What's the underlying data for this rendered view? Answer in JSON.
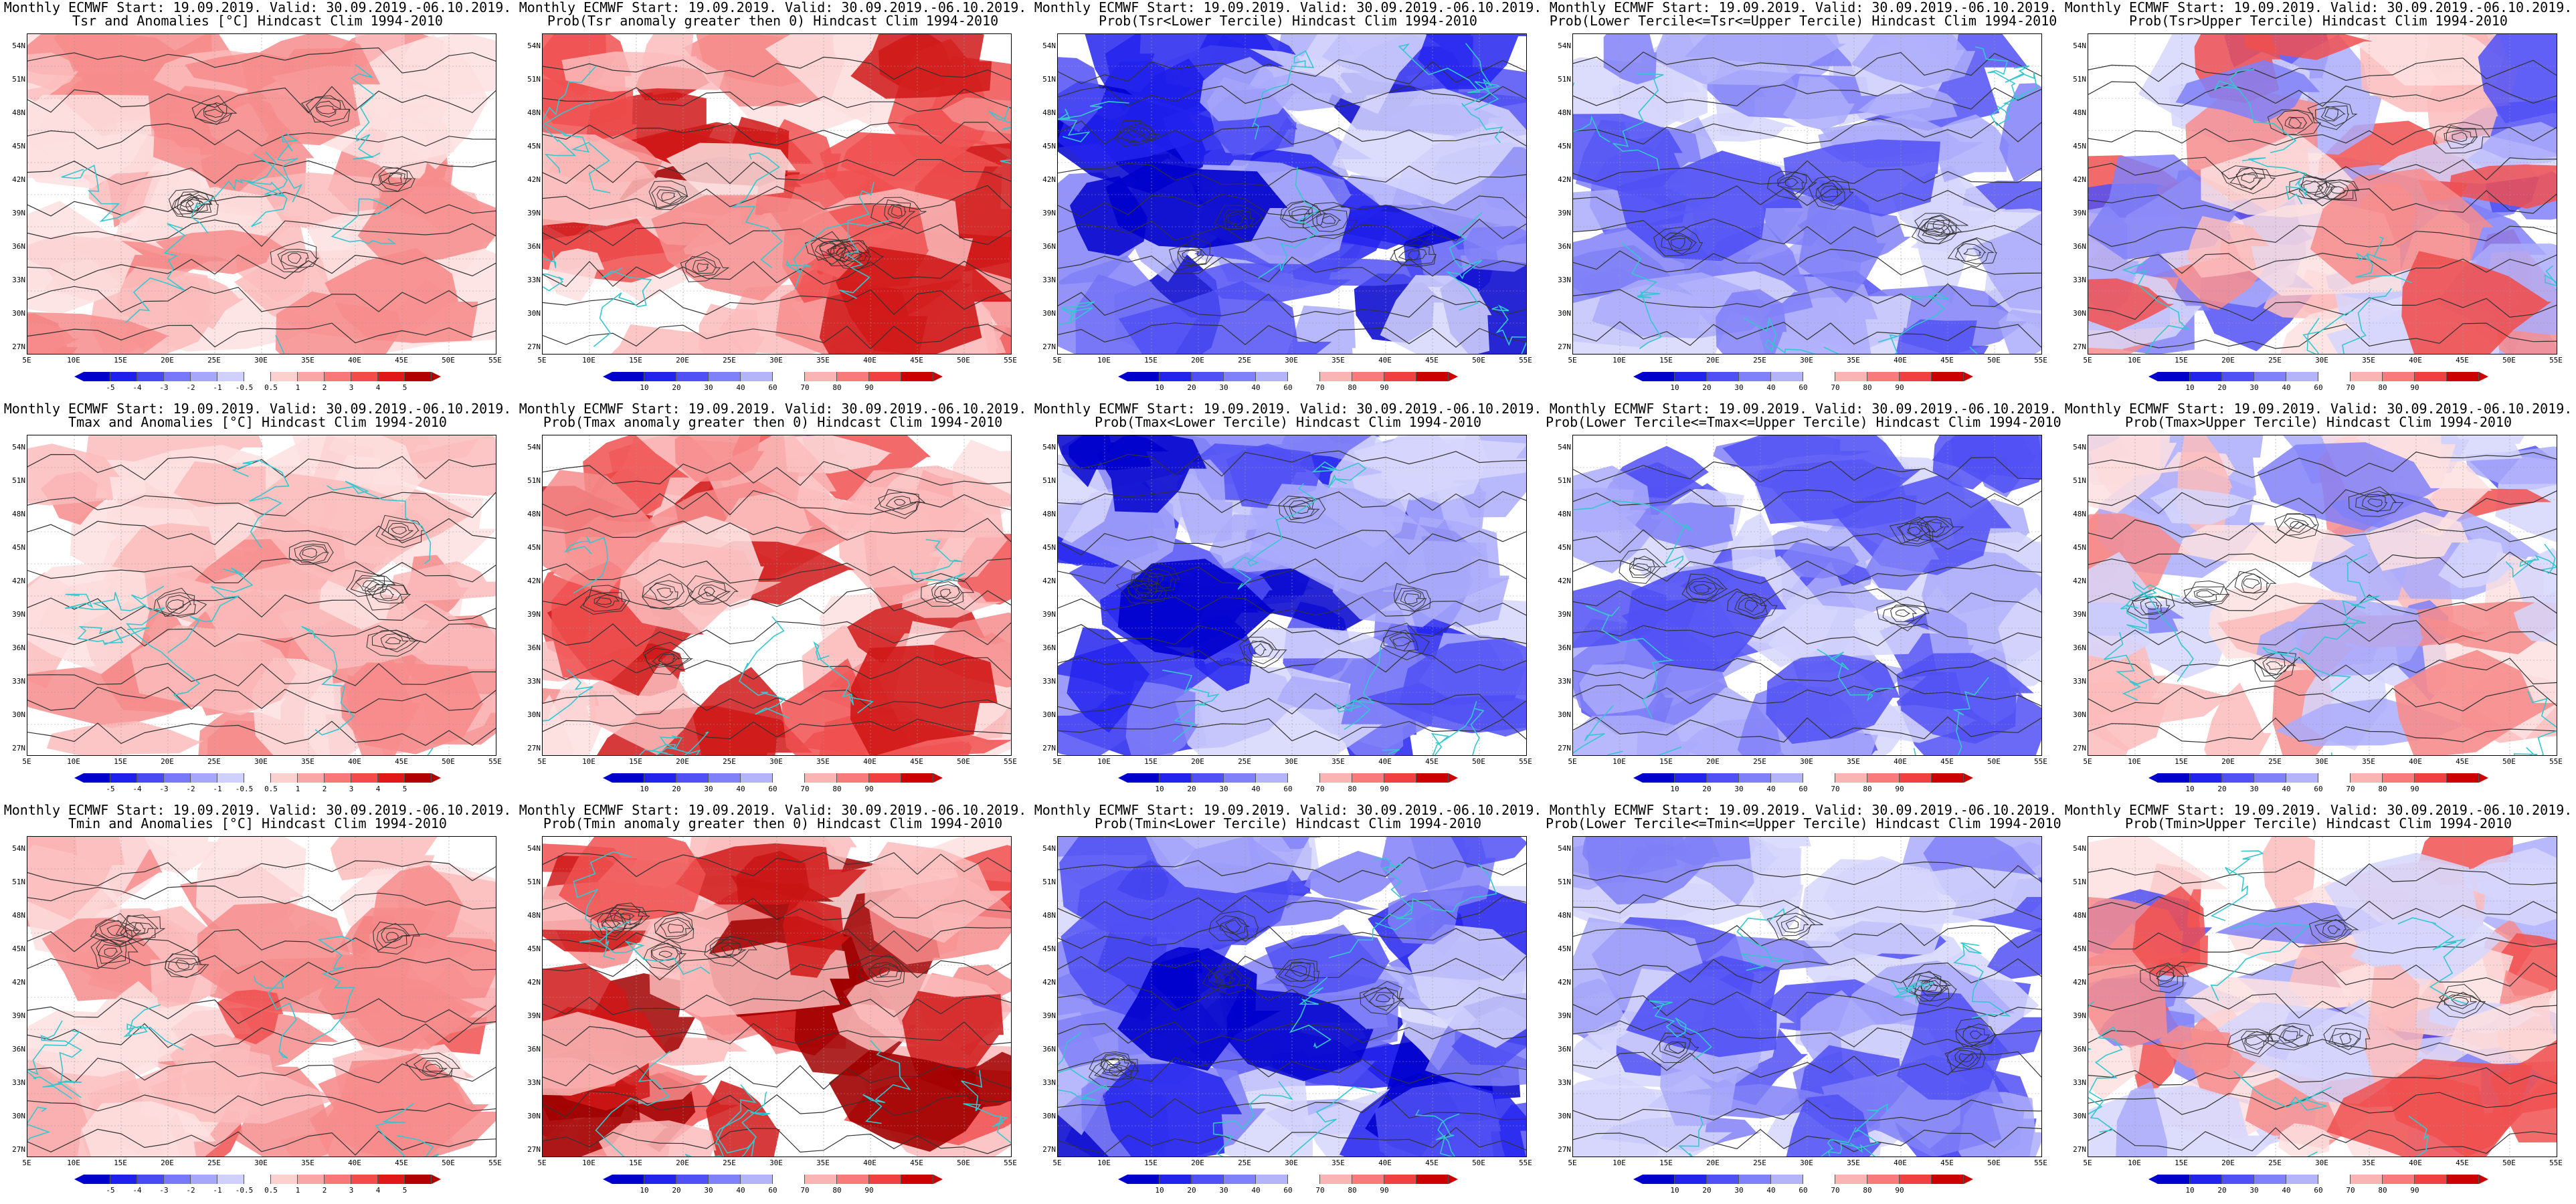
{
  "y_ticks": [
    "54N",
    "51N",
    "48N",
    "45N",
    "42N",
    "39N",
    "36N",
    "33N",
    "30N",
    "27N"
  ],
  "x_ticks": [
    "5E",
    "10E",
    "15E",
    "20E",
    "25E",
    "30E",
    "35E",
    "40E",
    "45E",
    "50E",
    "55E"
  ],
  "rows": [
    {
      "panels": [
        {
          "line1": "Monthly ECMWF Start: 19.09.2019. Valid: 30.09.2019.-06.10.2019.",
          "line2": "Tsr and Anomalies [°C] Hindcast Clim 1994-2010",
          "scale": "anom",
          "tone": "warm",
          "intensity": 0.45
        },
        {
          "line1": "Monthly ECMWF Start: 19.09.2019. Valid: 30.09.2019.-06.10.2019.",
          "line2": "Prob(Tsr anomaly greater then 0) Hindcast Clim 1994-2010",
          "scale": "prob",
          "tone": "warm",
          "intensity": 0.75
        },
        {
          "line1": "Monthly ECMWF Start: 19.09.2019. Valid: 30.09.2019.-06.10.2019.",
          "line2": "Prob(Tsr<Lower Tercile) Hindcast Clim 1994-2010",
          "scale": "prob",
          "tone": "cold",
          "intensity": 0.85
        },
        {
          "line1": "Monthly ECMWF Start: 19.09.2019. Valid: 30.09.2019.-06.10.2019.",
          "line2": "Prob(Lower Tercile<=Tsr<=Upper Tercile) Hindcast Clim 1994-2010",
          "scale": "prob",
          "tone": "cold",
          "intensity": 0.5
        },
        {
          "line1": "Monthly ECMWF Start: 19.09.2019. Valid: 30.09.2019.-06.10.2019.",
          "line2": "Prob(Tsr>Upper Tercile) Hindcast Clim 1994-2010",
          "scale": "prob",
          "tone": "mixed",
          "intensity": 0.55
        }
      ]
    },
    {
      "panels": [
        {
          "line1": "Monthly ECMWF Start: 19.09.2019. Valid: 30.09.2019.-06.10.2019.",
          "line2": "Tmax and Anomalies [°C] Hindcast Clim 1994-2010",
          "scale": "anom",
          "tone": "warm",
          "intensity": 0.4
        },
        {
          "line1": "Monthly ECMWF Start: 19.09.2019. Valid: 30.09.2019.-06.10.2019.",
          "line2": "Prob(Tmax anomaly greater then 0) Hindcast Clim 1994-2010",
          "scale": "prob",
          "tone": "warm",
          "intensity": 0.7
        },
        {
          "line1": "Monthly ECMWF Start: 19.09.2019. Valid: 30.09.2019.-06.10.2019.",
          "line2": "Prob(Tmax<Lower Tercile) Hindcast Clim 1994-2010",
          "scale": "prob",
          "tone": "cold",
          "intensity": 0.8
        },
        {
          "line1": "Monthly ECMWF Start: 19.09.2019. Valid: 30.09.2019.-06.10.2019.",
          "line2": "Prob(Lower Tercile<=Tmax<=Upper Tercile) Hindcast Clim 1994-2010",
          "scale": "prob",
          "tone": "cold",
          "intensity": 0.55
        },
        {
          "line1": "Monthly ECMWF Start: 19.09.2019. Valid: 30.09.2019.-06.10.2019.",
          "line2": "Prob(Tmax>Upper Tercile) Hindcast Clim 1994-2010",
          "scale": "prob",
          "tone": "mixed",
          "intensity": 0.45
        }
      ]
    },
    {
      "panels": [
        {
          "line1": "Monthly ECMWF Start: 19.09.2019. Valid: 30.09.2019.-06.10.2019.",
          "line2": "Tmin and Anomalies [°C] Hindcast Clim 1994-2010",
          "scale": "anom",
          "tone": "warm",
          "intensity": 0.45
        },
        {
          "line1": "Monthly ECMWF Start: 19.09.2019. Valid: 30.09.2019.-06.10.2019.",
          "line2": "Prob(Tmin anomaly greater then 0) Hindcast Clim 1994-2010",
          "scale": "prob",
          "tone": "warm",
          "intensity": 0.8
        },
        {
          "line1": "Monthly ECMWF Start: 19.09.2019. Valid: 30.09.2019.-06.10.2019.",
          "line2": "Prob(Tmin<Lower Tercile) Hindcast Clim 1994-2010",
          "scale": "prob",
          "tone": "cold",
          "intensity": 0.9
        },
        {
          "line1": "Monthly ECMWF Start: 19.09.2019. Valid: 30.09.2019.-06.10.2019.",
          "line2": "Prob(Lower Tercile<=Tmin<=Upper Tercile) Hindcast Clim 1994-2010",
          "scale": "prob",
          "tone": "cold",
          "intensity": 0.55
        },
        {
          "line1": "Monthly ECMWF Start: 19.09.2019. Valid: 30.09.2019.-06.10.2019.",
          "line2": "Prob(Tmin>Upper Tercile) Hindcast Clim 1994-2010",
          "scale": "prob",
          "tone": "mixed",
          "intensity": 0.55
        }
      ]
    }
  ],
  "scales": {
    "anom": {
      "labels": [
        "-5",
        "-4",
        "-3",
        "-2",
        "-1",
        "-0.5",
        "0.5",
        "1",
        "2",
        "3",
        "4",
        "5"
      ],
      "colors": [
        "#0000cc",
        "#2020ee",
        "#4a4af5",
        "#7878f8",
        "#a6a6fb",
        "#d0d0fd",
        "#ffffff",
        "#fdd0d0",
        "#fba6a6",
        "#f87878",
        "#f54a4a",
        "#e01818",
        "#b00000"
      ]
    },
    "prob": {
      "labels": [
        "10",
        "20",
        "30",
        "40",
        "60",
        "70",
        "80",
        "90"
      ],
      "colors": [
        "#0000cc",
        "#2323ee",
        "#5050f5",
        "#8080f8",
        "#b4b4fb",
        "#ffffff",
        "#fbb4b4",
        "#f87a7a",
        "#f04040",
        "#cc0000"
      ]
    }
  },
  "palette": {
    "warm": [
      "#ffffff",
      "#fde0e0",
      "#fbbcbc",
      "#f78c8c",
      "#f05050",
      "#d01818",
      "#a00000"
    ],
    "cold": [
      "#ffffff",
      "#d6d6fd",
      "#acacfb",
      "#8080f8",
      "#5050f5",
      "#2323ee",
      "#0000cc"
    ],
    "coast": "#35c7cf",
    "contour": "#333333"
  }
}
